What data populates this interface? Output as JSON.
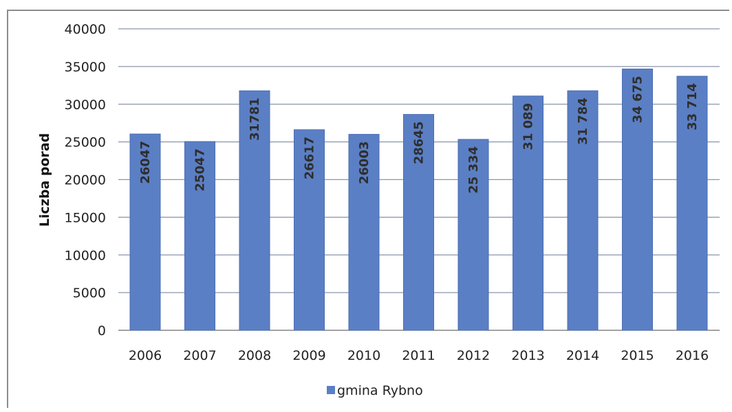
{
  "chart_data": {
    "type": "bar",
    "categories": [
      "2006",
      "2007",
      "2008",
      "2009",
      "2010",
      "2011",
      "2012",
      "2013",
      "2014",
      "2015",
      "2016"
    ],
    "series": [
      {
        "name": "gmina Rybno",
        "values": [
          26047,
          25047,
          31781,
          26617,
          26003,
          28645,
          25334,
          31089,
          31784,
          34675,
          33714
        ],
        "labels": [
          "26047",
          "25047",
          "31781",
          "26617",
          "26003",
          "28645",
          "25 334",
          "31 089",
          "31 784",
          "34 675",
          "33 714"
        ]
      }
    ],
    "ylabel": "Liczba porad",
    "ylim": [
      0,
      40000
    ],
    "yticks": [
      0,
      5000,
      10000,
      15000,
      20000,
      25000,
      30000,
      35000,
      40000
    ],
    "grid": true,
    "legend": "bottom",
    "colors": {
      "bar": "#5b7fc4",
      "bar_edge": "#4a6db3",
      "grid": "#8a94a8",
      "frame": "#8c8c8c"
    }
  }
}
